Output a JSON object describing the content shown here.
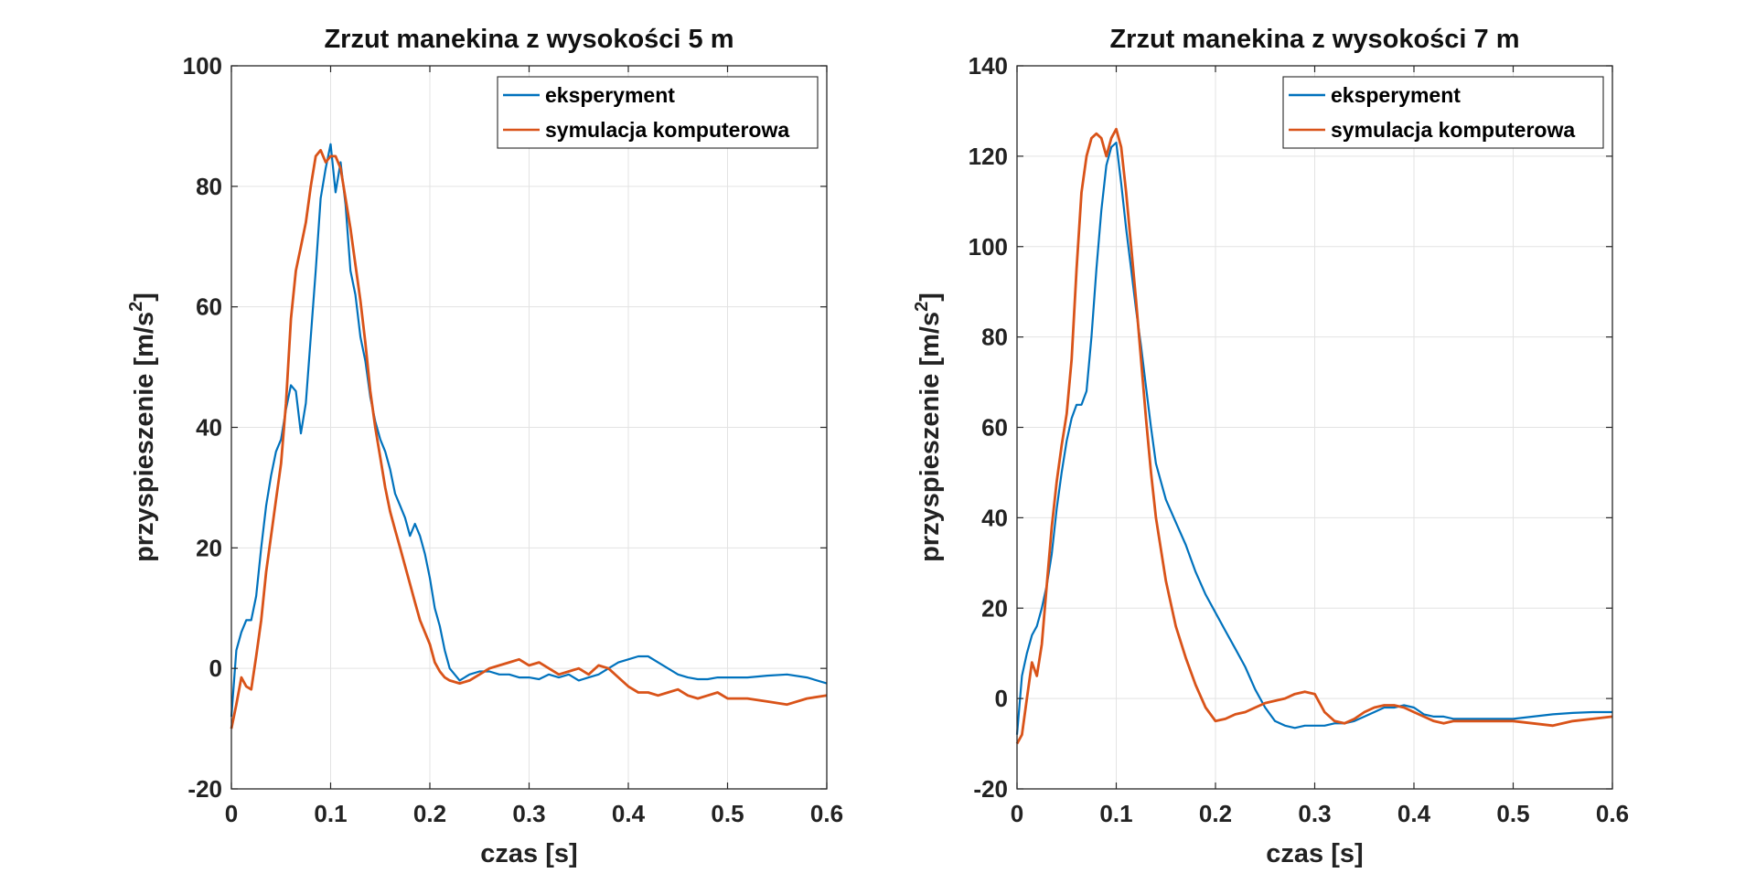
{
  "chart_data": [
    {
      "type": "line",
      "title": "Zrzut manekina z wysokości 5 m",
      "xlabel": "czas [s]",
      "ylabel_main": "przyspieszenie [m/s",
      "ylabel_sup": "2",
      "ylabel_end": "]",
      "xlim": [
        0,
        0.6
      ],
      "ylim": [
        -20,
        100
      ],
      "xticks": [
        0,
        0.1,
        0.2,
        0.3,
        0.4,
        0.5,
        0.6
      ],
      "xtick_labels": [
        "0",
        "0.1",
        "0.2",
        "0.3",
        "0.4",
        "0.5",
        "0.6"
      ],
      "yticks": [
        -20,
        0,
        20,
        40,
        60,
        80,
        100
      ],
      "ytick_labels": [
        "-20",
        "0",
        "20",
        "40",
        "60",
        "80",
        "100"
      ],
      "grid": true,
      "legend_position": "top-right",
      "series": [
        {
          "name": "eksperyment",
          "color": "#0072BD",
          "x": [
            0,
            0.005,
            0.01,
            0.015,
            0.02,
            0.025,
            0.03,
            0.035,
            0.04,
            0.045,
            0.05,
            0.055,
            0.06,
            0.065,
            0.07,
            0.075,
            0.08,
            0.085,
            0.09,
            0.095,
            0.1,
            0.105,
            0.11,
            0.115,
            0.12,
            0.125,
            0.13,
            0.135,
            0.14,
            0.145,
            0.15,
            0.155,
            0.16,
            0.165,
            0.17,
            0.175,
            0.18,
            0.185,
            0.19,
            0.195,
            0.2,
            0.205,
            0.21,
            0.215,
            0.22,
            0.23,
            0.24,
            0.25,
            0.26,
            0.27,
            0.28,
            0.29,
            0.3,
            0.31,
            0.32,
            0.33,
            0.34,
            0.35,
            0.36,
            0.37,
            0.38,
            0.39,
            0.4,
            0.41,
            0.42,
            0.43,
            0.44,
            0.45,
            0.46,
            0.47,
            0.48,
            0.49,
            0.5,
            0.52,
            0.54,
            0.56,
            0.58,
            0.6
          ],
          "y": [
            -8,
            3,
            6,
            8,
            8,
            12,
            20,
            27,
            32,
            36,
            38,
            43,
            47,
            46,
            39,
            44,
            55,
            66,
            78,
            83,
            87,
            79,
            84,
            77,
            66,
            62,
            55,
            51,
            45,
            41,
            38,
            36,
            33,
            29,
            27,
            25,
            22,
            24,
            22,
            19,
            15,
            10,
            7,
            3,
            0,
            -2,
            -1,
            -0.5,
            -0.5,
            -1,
            -1,
            -1.5,
            -1.5,
            -1.8,
            -1,
            -1.5,
            -1,
            -2,
            -1.5,
            -1,
            0,
            1,
            1.5,
            2,
            2,
            1,
            0,
            -1,
            -1.5,
            -1.8,
            -1.8,
            -1.5,
            -1.5,
            -1.5,
            -1.2,
            -1,
            -1.5,
            -2.5
          ]
        },
        {
          "name": "symulacja komputerowa",
          "color": "#D95319",
          "x": [
            0,
            0.005,
            0.01,
            0.015,
            0.02,
            0.025,
            0.03,
            0.035,
            0.04,
            0.045,
            0.05,
            0.055,
            0.06,
            0.065,
            0.07,
            0.075,
            0.08,
            0.085,
            0.09,
            0.095,
            0.1,
            0.105,
            0.11,
            0.115,
            0.12,
            0.125,
            0.13,
            0.135,
            0.14,
            0.145,
            0.15,
            0.155,
            0.16,
            0.165,
            0.17,
            0.175,
            0.18,
            0.185,
            0.19,
            0.195,
            0.2,
            0.205,
            0.21,
            0.215,
            0.22,
            0.23,
            0.24,
            0.25,
            0.26,
            0.27,
            0.28,
            0.29,
            0.3,
            0.31,
            0.32,
            0.33,
            0.34,
            0.35,
            0.36,
            0.37,
            0.38,
            0.39,
            0.4,
            0.41,
            0.42,
            0.43,
            0.44,
            0.45,
            0.46,
            0.47,
            0.48,
            0.49,
            0.5,
            0.52,
            0.54,
            0.56,
            0.58,
            0.6
          ],
          "y": [
            -10,
            -6,
            -1.5,
            -3,
            -3.5,
            2,
            8,
            16,
            22,
            28,
            34,
            44,
            58,
            66,
            70,
            74,
            80,
            85,
            86,
            84,
            85,
            85,
            83,
            78,
            73,
            67,
            61,
            54,
            46,
            40,
            35,
            30,
            26,
            23,
            20,
            17,
            14,
            11,
            8,
            6,
            4,
            1,
            -0.5,
            -1.5,
            -2,
            -2.5,
            -2,
            -1,
            0,
            0.5,
            1,
            1.5,
            0.5,
            1,
            0,
            -1,
            -0.5,
            0,
            -1,
            0.5,
            0,
            -1.5,
            -3,
            -4,
            -4,
            -4.5,
            -4,
            -3.5,
            -4.5,
            -5,
            -4.5,
            -4,
            -5,
            -5,
            -5.5,
            -6,
            -5,
            -4.5
          ]
        }
      ]
    },
    {
      "type": "line",
      "title": "Zrzut manekina z wysokości 7 m",
      "xlabel": "czas [s]",
      "ylabel_main": "przyspieszenie [m/s",
      "ylabel_sup": "2",
      "ylabel_end": "]",
      "xlim": [
        0,
        0.6
      ],
      "ylim": [
        -20,
        140
      ],
      "xticks": [
        0,
        0.1,
        0.2,
        0.3,
        0.4,
        0.5,
        0.6
      ],
      "xtick_labels": [
        "0",
        "0.1",
        "0.2",
        "0.3",
        "0.4",
        "0.5",
        "0.6"
      ],
      "yticks": [
        -20,
        0,
        20,
        40,
        60,
        80,
        100,
        120,
        140
      ],
      "ytick_labels": [
        "-20",
        "0",
        "20",
        "40",
        "60",
        "80",
        "100",
        "120",
        "140"
      ],
      "grid": true,
      "legend_position": "top-right",
      "series": [
        {
          "name": "eksperyment",
          "color": "#0072BD",
          "x": [
            0,
            0.005,
            0.01,
            0.015,
            0.02,
            0.025,
            0.03,
            0.035,
            0.04,
            0.045,
            0.05,
            0.055,
            0.06,
            0.065,
            0.07,
            0.075,
            0.08,
            0.085,
            0.09,
            0.095,
            0.1,
            0.105,
            0.11,
            0.115,
            0.12,
            0.125,
            0.13,
            0.135,
            0.14,
            0.15,
            0.16,
            0.17,
            0.18,
            0.19,
            0.2,
            0.21,
            0.22,
            0.23,
            0.24,
            0.25,
            0.26,
            0.27,
            0.28,
            0.29,
            0.3,
            0.31,
            0.32,
            0.33,
            0.34,
            0.35,
            0.36,
            0.37,
            0.38,
            0.39,
            0.4,
            0.41,
            0.42,
            0.43,
            0.44,
            0.45,
            0.46,
            0.47,
            0.48,
            0.49,
            0.5,
            0.52,
            0.54,
            0.56,
            0.58,
            0.6
          ],
          "y": [
            -8,
            5,
            10,
            14,
            16,
            20,
            25,
            32,
            42,
            50,
            57,
            62,
            65,
            65,
            68,
            80,
            95,
            108,
            118,
            122,
            123,
            114,
            104,
            95,
            86,
            78,
            69,
            60,
            52,
            44,
            39,
            34,
            28,
            23,
            19,
            15,
            11,
            7,
            2,
            -2,
            -5,
            -6,
            -6.5,
            -6,
            -6,
            -6,
            -5.5,
            -5.5,
            -5,
            -4,
            -3,
            -2,
            -2,
            -1.5,
            -2,
            -3.5,
            -4,
            -4,
            -4.5,
            -4.5,
            -4.5,
            -4.5,
            -4.5,
            -4.5,
            -4.5,
            -4,
            -3.5,
            -3.2,
            -3,
            -3
          ]
        },
        {
          "name": "symulacja komputerowa",
          "color": "#D95319",
          "x": [
            0,
            0.005,
            0.01,
            0.015,
            0.02,
            0.025,
            0.03,
            0.035,
            0.04,
            0.045,
            0.05,
            0.055,
            0.06,
            0.065,
            0.07,
            0.075,
            0.08,
            0.085,
            0.09,
            0.095,
            0.1,
            0.105,
            0.11,
            0.115,
            0.12,
            0.125,
            0.13,
            0.135,
            0.14,
            0.15,
            0.16,
            0.17,
            0.18,
            0.19,
            0.2,
            0.21,
            0.22,
            0.23,
            0.24,
            0.25,
            0.26,
            0.27,
            0.28,
            0.29,
            0.3,
            0.31,
            0.32,
            0.33,
            0.34,
            0.35,
            0.36,
            0.37,
            0.38,
            0.39,
            0.4,
            0.41,
            0.42,
            0.43,
            0.44,
            0.45,
            0.46,
            0.47,
            0.48,
            0.49,
            0.5,
            0.52,
            0.54,
            0.56,
            0.58,
            0.6
          ],
          "y": [
            -10,
            -8,
            0,
            8,
            5,
            12,
            25,
            38,
            48,
            56,
            63,
            75,
            95,
            112,
            120,
            124,
            125,
            124,
            120,
            124,
            126,
            122,
            112,
            100,
            88,
            75,
            62,
            50,
            40,
            26,
            16,
            9,
            3,
            -2,
            -5,
            -4.5,
            -3.5,
            -3,
            -2,
            -1,
            -0.5,
            0,
            1,
            1.5,
            1,
            -3,
            -5,
            -5.5,
            -4.5,
            -3,
            -2,
            -1.5,
            -1.5,
            -2,
            -3,
            -4,
            -5,
            -5.5,
            -5,
            -5,
            -5,
            -5,
            -5,
            -5,
            -5,
            -5.5,
            -6,
            -5,
            -4.5,
            -4
          ]
        }
      ]
    }
  ]
}
